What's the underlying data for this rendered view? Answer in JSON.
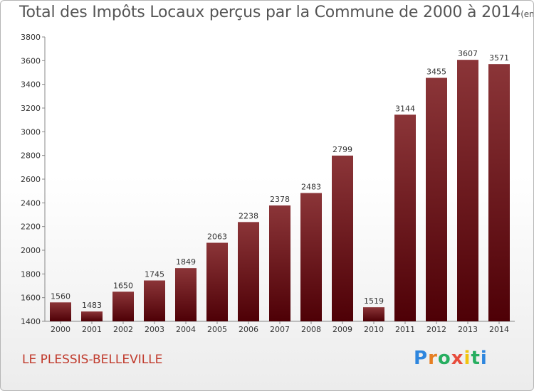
{
  "header": {
    "title": "Total des Impôts Locaux perçus par la Commune de 2000 à 2014",
    "unit": "(en milliers d'€)"
  },
  "footer": {
    "commune": "LE PLESSIS-BELLEVILLE",
    "logo": "Proxiti"
  },
  "colors": {
    "bar_top": "#8b3538",
    "bar_bottom": "#4e0006",
    "title": "#555555",
    "commune": "#c0392b"
  },
  "chart_data": {
    "type": "bar",
    "categories": [
      "2000",
      "2001",
      "2002",
      "2003",
      "2004",
      "2005",
      "2006",
      "2007",
      "2008",
      "2009",
      "2010",
      "2011",
      "2012",
      "2013",
      "2014"
    ],
    "values": [
      1560,
      1483,
      1650,
      1745,
      1849,
      2063,
      2238,
      2378,
      2483,
      2799,
      1519,
      3144,
      3455,
      3607,
      3571
    ],
    "ylim": [
      1400,
      3800
    ],
    "yticks": [
      1400,
      1600,
      1800,
      2000,
      2200,
      2400,
      2600,
      2800,
      3000,
      3200,
      3400,
      3600,
      3800
    ],
    "data_labels": true,
    "grid": false
  }
}
